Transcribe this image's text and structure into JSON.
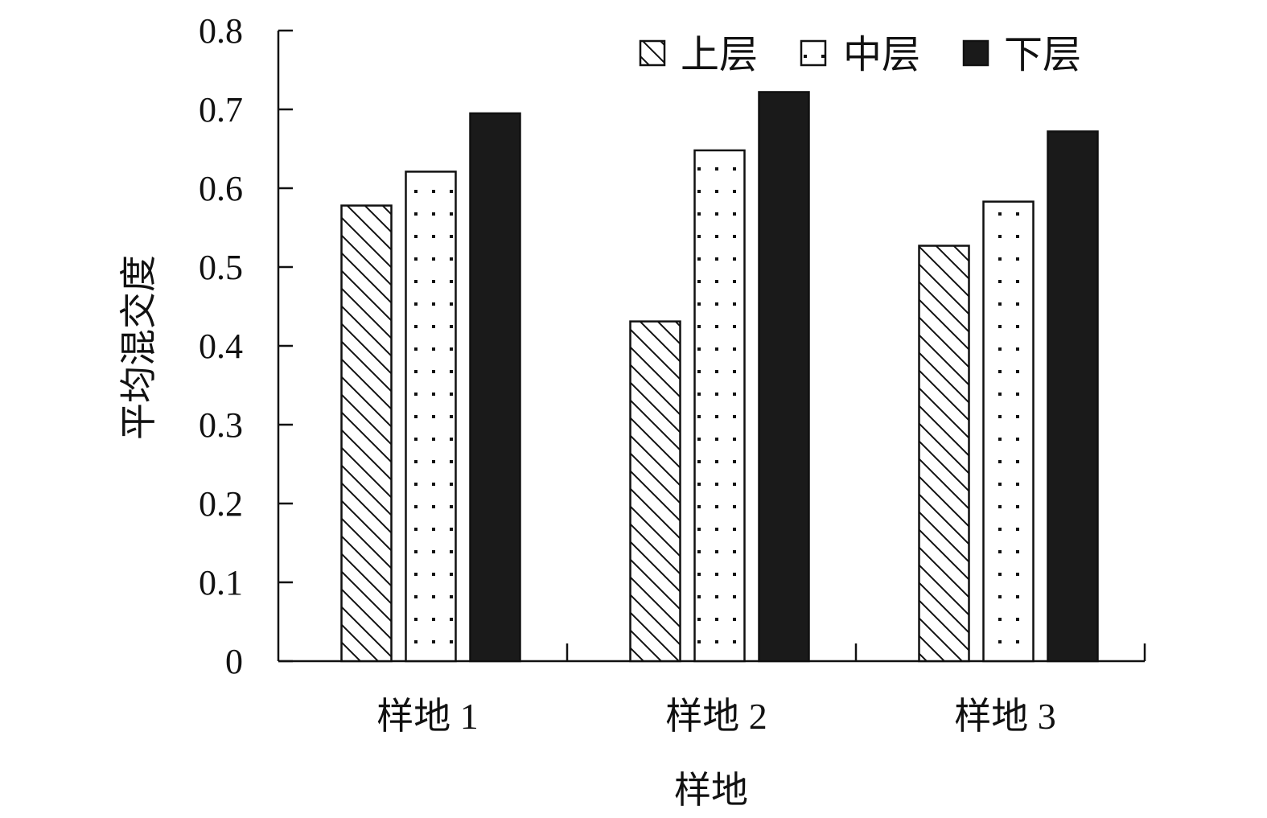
{
  "chart_data": {
    "type": "bar",
    "title": "",
    "xlabel": "样地",
    "ylabel": "平均混交度",
    "categories": [
      "样地 1",
      "样地 2",
      "样地 3"
    ],
    "series": [
      {
        "name": "上层",
        "pattern": "diagonal-hatch",
        "values": [
          0.578,
          0.431,
          0.527
        ]
      },
      {
        "name": "中层",
        "pattern": "dots",
        "values": [
          0.621,
          0.648,
          0.583
        ]
      },
      {
        "name": "下层",
        "pattern": "solid",
        "color": "#1a1a1a",
        "values": [
          0.695,
          0.722,
          0.672
        ]
      }
    ],
    "ylim": [
      0,
      0.8
    ],
    "yticks": [
      "0",
      "0.1",
      "0.2",
      "0.3",
      "0.4",
      "0.5",
      "0.6",
      "0.7",
      "0.8"
    ],
    "legend_position": "top-right",
    "grid": false
  }
}
